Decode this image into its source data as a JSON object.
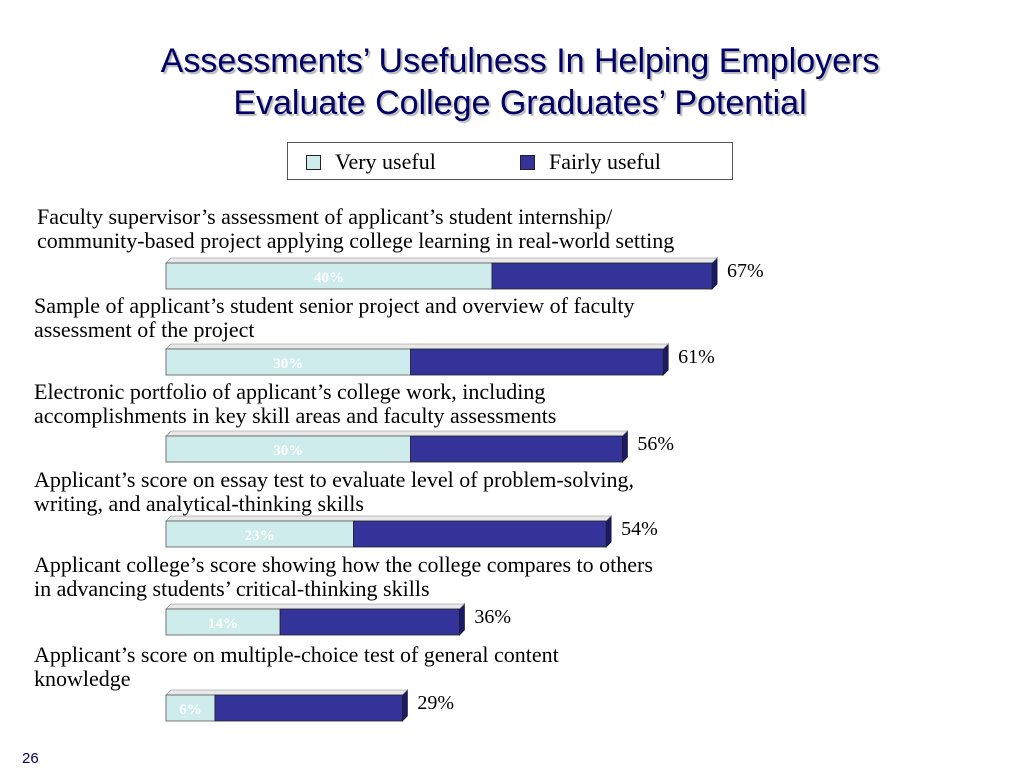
{
  "title": {
    "line1": "Assessments’ Usefulness In Helping Employers",
    "line2": "Evaluate College Graduates’ Potential"
  },
  "page_number": "26",
  "colors": {
    "very_useful": "#cfecec",
    "fairly_useful": "#333399",
    "title": "#000066"
  },
  "chart_data": {
    "type": "bar",
    "orientation": "horizontal",
    "stacked": true,
    "legend": [
      "Very useful",
      "Fairly useful"
    ],
    "legend_position": "top",
    "xlim": [
      0,
      100
    ],
    "categories": [
      [
        "Faculty supervisor’s assessment of applicant’s student internship/",
        "community-based project applying college learning in real-world setting"
      ],
      [
        "Sample of applicant’s student senior project and overview of faculty",
        "assessment of the project"
      ],
      [
        "Electronic portfolio of applicant’s college work, including",
        "accomplishments in key skill areas and faculty assessments"
      ],
      [
        "Applicant’s score on essay test to evaluate level of problem-solving,",
        "writing, and analytical-thinking skills"
      ],
      [
        "Applicant college’s score showing how the college compares to others",
        "in advancing students’ critical-thinking skills"
      ],
      [
        "Applicant’s score on multiple-choice test of general content",
        "knowledge"
      ]
    ],
    "series": [
      {
        "name": "Very useful",
        "values": [
          40,
          30,
          30,
          23,
          14,
          6
        ],
        "labels": [
          "40%",
          "30%",
          "30%",
          "23%",
          "14%",
          "6%"
        ]
      },
      {
        "name": "Fairly useful",
        "values": [
          27,
          31,
          26,
          31,
          22,
          23
        ]
      }
    ],
    "totals": [
      67,
      61,
      56,
      54,
      36,
      29
    ],
    "total_labels": [
      "67%",
      "61%",
      "56%",
      "54%",
      "36%",
      "29%"
    ]
  }
}
